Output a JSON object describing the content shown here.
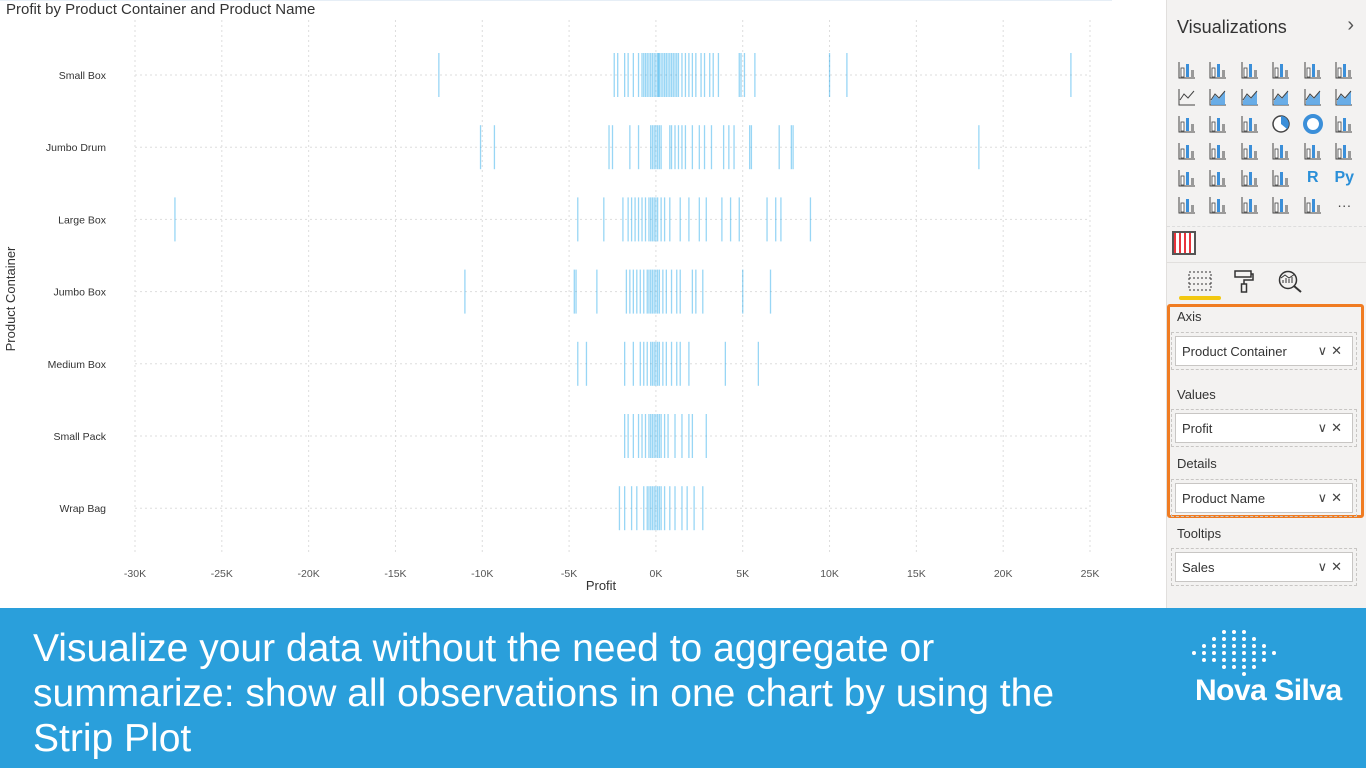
{
  "chart_data": {
    "type": "strip",
    "title": "Profit by Product Container and Product Name",
    "xlabel": "Profit",
    "ylabel": "Product Container",
    "xlim": [
      -30000,
      25000
    ],
    "xticks": [
      "-30K",
      "-25K",
      "-20K",
      "-15K",
      "-10K",
      "-5K",
      "0K",
      "5K",
      "10K",
      "15K",
      "20K",
      "25K"
    ],
    "xtick_values": [
      -30000,
      -25000,
      -20000,
      -15000,
      -10000,
      -5000,
      0,
      5000,
      10000,
      15000,
      20000,
      25000
    ],
    "grid": true,
    "color": "#1aa3e8",
    "categories": [
      "Small Box",
      "Jumbo Drum",
      "Large Box",
      "Jumbo Box",
      "Medium Box",
      "Small Pack",
      "Wrap Bag"
    ],
    "series": [
      {
        "category": "Small Box",
        "values": [
          -12500,
          -2400,
          -2200,
          -1800,
          -1600,
          -1300,
          -1000,
          -800,
          -700,
          -600,
          -500,
          -400,
          -300,
          -200,
          -100,
          0,
          100,
          150,
          200,
          300,
          400,
          500,
          600,
          700,
          800,
          900,
          1000,
          1100,
          1200,
          1300,
          1500,
          1700,
          1900,
          2100,
          2300,
          2600,
          2800,
          3100,
          3300,
          3600,
          4800,
          4900,
          5100,
          5700,
          10000,
          11000,
          23900
        ]
      },
      {
        "category": "Jumbo Drum",
        "values": [
          -10100,
          -9300,
          -2700,
          -2500,
          -1500,
          -1000,
          -300,
          -200,
          -100,
          0,
          100,
          200,
          300,
          800,
          900,
          1100,
          1300,
          1500,
          1700,
          2100,
          2500,
          2800,
          3200,
          3900,
          4200,
          4500,
          5400,
          5500,
          7100,
          7800,
          7900,
          18600
        ]
      },
      {
        "category": "Large Box",
        "values": [
          -27700,
          -4500,
          -3000,
          -1900,
          -1600,
          -1400,
          -1200,
          -1000,
          -800,
          -600,
          -400,
          -300,
          -200,
          -100,
          0,
          100,
          300,
          500,
          800,
          1400,
          1900,
          2500,
          2900,
          3800,
          4300,
          4800,
          6400,
          6900,
          7200,
          8900
        ]
      },
      {
        "category": "Jumbo Box",
        "values": [
          -11000,
          -4700,
          -4600,
          -3400,
          -1700,
          -1500,
          -1300,
          -1100,
          -900,
          -700,
          -500,
          -400,
          -300,
          -200,
          -100,
          0,
          100,
          200,
          400,
          600,
          900,
          1200,
          1400,
          2100,
          2300,
          2700,
          5000,
          6600
        ]
      },
      {
        "category": "Medium Box",
        "values": [
          -4500,
          -4000,
          -1800,
          -1300,
          -900,
          -700,
          -500,
          -300,
          -200,
          -100,
          0,
          100,
          200,
          400,
          600,
          900,
          1200,
          1400,
          1900,
          4000,
          5900
        ]
      },
      {
        "category": "Small Pack",
        "values": [
          -1800,
          -1600,
          -1300,
          -1000,
          -800,
          -600,
          -400,
          -300,
          -200,
          -100,
          0,
          100,
          200,
          300,
          500,
          700,
          1100,
          1500,
          1900,
          2100,
          2900
        ]
      },
      {
        "category": "Wrap Bag",
        "values": [
          -2100,
          -1800,
          -1400,
          -1100,
          -700,
          -500,
          -400,
          -300,
          -200,
          -100,
          0,
          100,
          200,
          300,
          500,
          800,
          1100,
          1500,
          1800,
          2200,
          2700
        ]
      }
    ]
  },
  "pane": {
    "title": "Visualizations",
    "expand_icon": "chevron-right-icon",
    "visuals": [
      "stacked-bar",
      "stacked-column",
      "clustered-bar",
      "clustered-column",
      "100-stacked-bar",
      "100-stacked-column",
      "line",
      "area",
      "stacked-area",
      "line-clustered-column",
      "line-stacked-column",
      "ribbon",
      "waterfall",
      "funnel",
      "scatter",
      "pie",
      "donut",
      "treemap",
      "map",
      "filled-map",
      "shape-map",
      "gauge",
      "card",
      "multi-row-card",
      "kpi",
      "slicer",
      "table",
      "matrix",
      "r-visual",
      "python-visual",
      "key-influencers",
      "decomposition-tree",
      "qa",
      "arcgis",
      "power-apps",
      "more"
    ],
    "r_label": "R",
    "py_label": "Py",
    "more_label": "···",
    "custom_visual": "strip-plot",
    "tabs": [
      "fields",
      "format",
      "analytics"
    ],
    "wells": [
      {
        "label": "Axis",
        "field": "Product Container"
      },
      {
        "label": "Values",
        "field": "Profit"
      },
      {
        "label": "Details",
        "field": "Product Name"
      },
      {
        "label": "Tooltips",
        "field": "Sales"
      }
    ],
    "highlight_color": "#f07c22"
  },
  "banner": {
    "text": "Visualize your data without the need to aggregate or summarize: show all observations in one chart by using the Strip Plot",
    "logo_text": "Nova Silva",
    "color": "#2a9fdb"
  }
}
